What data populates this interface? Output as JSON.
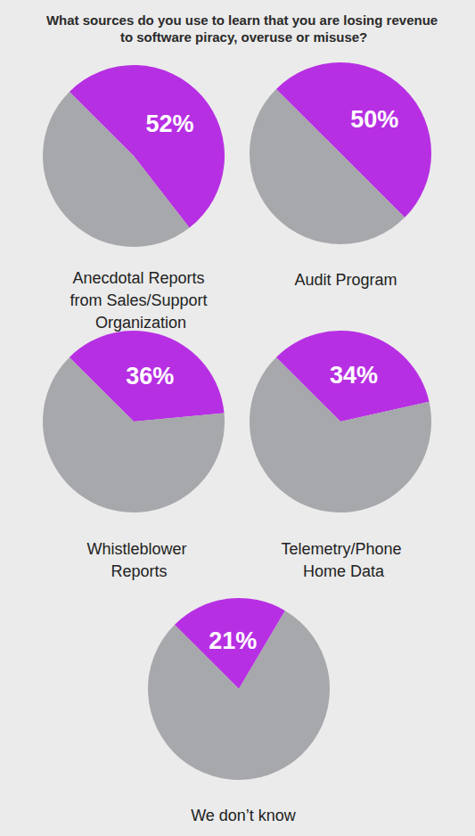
{
  "title": "What sources do you use to learn that you are losing revenue to software piracy, overuse or misuse?",
  "chart_data": [
    {
      "type": "pie",
      "title": "Anecdotal Reports from Sales/Support Organization",
      "values": [
        52,
        48
      ],
      "value_labels": [
        "52%",
        null
      ],
      "colors": [
        "#b72fe3",
        "#a6a8ab"
      ],
      "data_labels": true
    },
    {
      "type": "pie",
      "title": "Audit Program",
      "values": [
        50,
        50
      ],
      "value_labels": [
        "50%",
        null
      ],
      "colors": [
        "#b72fe3",
        "#a6a8ab"
      ],
      "data_labels": true
    },
    {
      "type": "pie",
      "title": "Whistleblower Reports",
      "values": [
        36,
        64
      ],
      "value_labels": [
        "36%",
        null
      ],
      "colors": [
        "#b72fe3",
        "#a6a8ab"
      ],
      "data_labels": true
    },
    {
      "type": "pie",
      "title": "Telemetry/Phone Home Data",
      "values": [
        34,
        66
      ],
      "value_labels": [
        "34%",
        null
      ],
      "colors": [
        "#b72fe3",
        "#a6a8ab"
      ],
      "data_labels": true
    },
    {
      "type": "pie",
      "title": "We don’t know",
      "values": [
        21,
        79
      ],
      "value_labels": [
        "21%",
        null
      ],
      "colors": [
        "#b72fe3",
        "#a6a8ab"
      ],
      "data_labels": true
    }
  ]
}
